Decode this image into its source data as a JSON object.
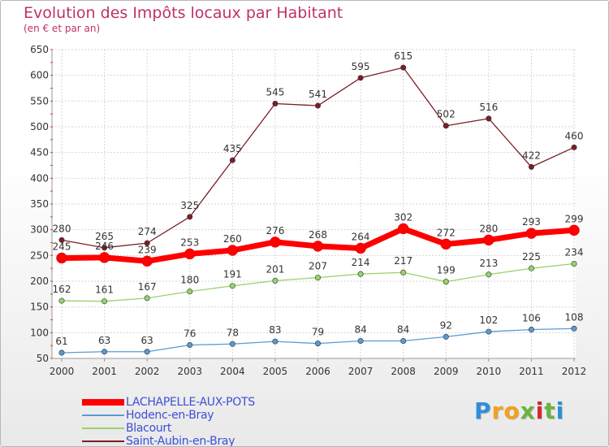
{
  "chart_data": {
    "type": "line",
    "title": "Evolution des Impôts locaux par Habitant",
    "subtitle": "(en € et par an)",
    "x": [
      "2000",
      "2001",
      "2002",
      "2003",
      "2004",
      "2005",
      "2006",
      "2007",
      "2008",
      "2009",
      "2010",
      "2011",
      "2012"
    ],
    "ylim": [
      50,
      650
    ],
    "yticks": [
      50,
      100,
      150,
      200,
      250,
      300,
      350,
      400,
      450,
      500,
      550,
      600,
      650
    ],
    "grid": true,
    "legend_position": "bottom-left",
    "series": [
      {
        "name": "Saint-Aubin-en-Bray",
        "color": "#7a1e27",
        "values": [
          280,
          265,
          274,
          325,
          435,
          545,
          541,
          595,
          615,
          502,
          516,
          422,
          460
        ]
      },
      {
        "name": "Blacourt",
        "color": "#99d36a",
        "values": [
          162,
          161,
          167,
          180,
          191,
          201,
          207,
          214,
          217,
          199,
          213,
          225,
          234
        ]
      },
      {
        "name": "Hodenc-en-Bray",
        "color": "#5b9bd0",
        "values": [
          61,
          63,
          63,
          76,
          78,
          83,
          79,
          84,
          84,
          92,
          102,
          106,
          108
        ]
      },
      {
        "name": "LACHAPELLE-AUX-POTS",
        "color": "#ff0000",
        "values": [
          245,
          246,
          239,
          253,
          260,
          276,
          268,
          264,
          302,
          272,
          280,
          293,
          299
        ]
      }
    ]
  },
  "legend": {
    "items": [
      {
        "label": "LACHAPELLE-AUX-POTS",
        "color": "#ff0000"
      },
      {
        "label": "Hodenc-en-Bray",
        "color": "#5b9bd0"
      },
      {
        "label": "Blacourt",
        "color": "#99d36a"
      },
      {
        "label": "Saint-Aubin-en-Bray",
        "color": "#7a1e27"
      }
    ]
  },
  "brand": {
    "letters": [
      "P",
      "r",
      "o",
      "x",
      "i",
      "t",
      "i"
    ],
    "colors": [
      "#2f8fd6",
      "#f2a21b",
      "#f2a21b",
      "#6cb33f",
      "#d7262d",
      "#6cb33f",
      "#2f8fd6"
    ]
  }
}
